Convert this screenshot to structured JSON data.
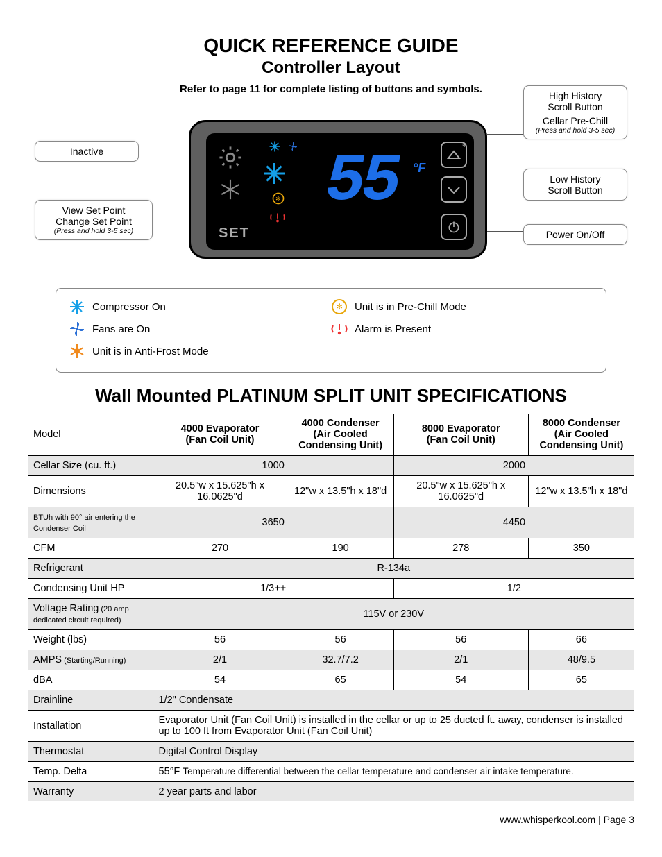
{
  "title": "QUICK REFERENCE GUIDE",
  "subtitle": "Controller Layout",
  "subnote": "Refer to  page 11 for complete listing of buttons and symbols.",
  "callouts": {
    "inactive": "Inactive",
    "viewset": "View Set Point",
    "changeset": "Change Set Point",
    "changeset_sub": "(Press and hold 3-5 sec)",
    "hihist": "High History",
    "hihist2": "Scroll Button",
    "prechill": "Cellar Pre-Chill",
    "prechill_sub": "(Press and hold 3-5 sec)",
    "lowhist": "Low History",
    "lowhist2": "Scroll Button",
    "power": "Power On/Off"
  },
  "controller": {
    "temp": "55",
    "unit": "°F",
    "set_label": "SET"
  },
  "legend": {
    "compressor": "Compressor On",
    "fans": "Fans are On",
    "antifrost": "Unit is in Anti-Frost Mode",
    "prechill": "Unit is in Pre-Chill Mode",
    "alarm": "Alarm is Present"
  },
  "colors": {
    "snow_blue": "#15a0e8",
    "fan_blue": "#2a6fd6",
    "antifrost": "#f08a1d",
    "prechill": "#e8a60a",
    "alarm": "#e33"
  },
  "spec_title": "Wall Mounted PLATINUM SPLIT UNIT SPECIFICATIONS",
  "spec": {
    "headers": [
      "Model",
      "4000 Evaporator (Fan Coil Unit)",
      "4000 Condenser (Air Cooled Condensing Unit)",
      "8000 Evaporator (Fan Coil Unit)",
      "8000 Condenser (Air Cooled Condensing Unit)"
    ],
    "rows": [
      {
        "grey": true,
        "label": "Cellar Size (cu. ft.)",
        "cells": [
          {
            "v": "1000",
            "span": 2
          },
          {
            "v": "2000",
            "span": 2
          }
        ]
      },
      {
        "grey": false,
        "label": "Dimensions",
        "cells": [
          {
            "v": "20.5\"w x 15.625\"h x 16.0625\"d"
          },
          {
            "v": "12\"w x 13.5\"h x 18\"d"
          },
          {
            "v": "20.5\"w x 15.625\"h x 16.0625\"d"
          },
          {
            "v": "12\"w x 13.5\"h x 18\"d"
          }
        ]
      },
      {
        "grey": true,
        "label": "BTUh with 90° air entering the Condenser Coil",
        "label_small": true,
        "cells": [
          {
            "v": "3650",
            "span": 2
          },
          {
            "v": "4450",
            "span": 2
          }
        ]
      },
      {
        "grey": false,
        "label": "CFM",
        "cells": [
          {
            "v": "270"
          },
          {
            "v": "190"
          },
          {
            "v": "278"
          },
          {
            "v": "350"
          }
        ]
      },
      {
        "grey": true,
        "label": "Refrigerant",
        "cells": [
          {
            "v": "R-134a",
            "span": 4
          }
        ]
      },
      {
        "grey": false,
        "label": "Condensing Unit HP",
        "cells": [
          {
            "v": "1/3++",
            "span": 2
          },
          {
            "v": "1/2",
            "span": 2
          }
        ]
      },
      {
        "grey": true,
        "label": "Voltage Rating (20 amp dedicated circuit required)",
        "label_mixed": "Voltage Rating",
        "label_small_tail": " (20 amp dedicated circuit required)",
        "cells": [
          {
            "v": "115V or 230V",
            "span": 4
          }
        ]
      },
      {
        "grey": false,
        "label": "Weight (lbs)",
        "cells": [
          {
            "v": "56"
          },
          {
            "v": "56"
          },
          {
            "v": "56"
          },
          {
            "v": "66"
          }
        ]
      },
      {
        "grey": true,
        "label": "AMPS (Starting/Running)",
        "label_mixed": "AMPS",
        "label_small_tail": " (Starting/Running)",
        "cells": [
          {
            "v": "2/1"
          },
          {
            "v": "32.7/7.2"
          },
          {
            "v": "2/1"
          },
          {
            "v": "48/9.5"
          }
        ]
      },
      {
        "grey": false,
        "label": "dBA",
        "cells": [
          {
            "v": "54"
          },
          {
            "v": "65"
          },
          {
            "v": "54"
          },
          {
            "v": "65"
          }
        ]
      },
      {
        "grey": true,
        "label": "Drainline",
        "cells": [
          {
            "v": "1/2\" Condensate",
            "span": 4,
            "left": true
          }
        ]
      },
      {
        "grey": false,
        "label": "Installation",
        "cells": [
          {
            "v": "Evaporator Unit (Fan Coil Unit) is installed in the cellar or up to 25 ducted ft. away,  condenser is installed up to 100 ft from Evaporator Unit (Fan Coil Unit)",
            "span": 4,
            "left": true
          }
        ]
      },
      {
        "grey": true,
        "label": "Thermostat",
        "cells": [
          {
            "v": "Digital Control Display",
            "span": 4,
            "left": true
          }
        ]
      },
      {
        "grey": false,
        "label": "Temp. Delta",
        "cells": [
          {
            "v": "55°F Temperature differential between the cellar temperature and condenser air intake temperature.",
            "span": 4,
            "left": true,
            "small": true,
            "pre": "55°F "
          }
        ]
      },
      {
        "grey": true,
        "label": "Warranty",
        "cells": [
          {
            "v": "2 year parts and labor",
            "span": 4,
            "left": true
          }
        ]
      }
    ]
  },
  "footer": "www.whisperkool.com | Page 3"
}
